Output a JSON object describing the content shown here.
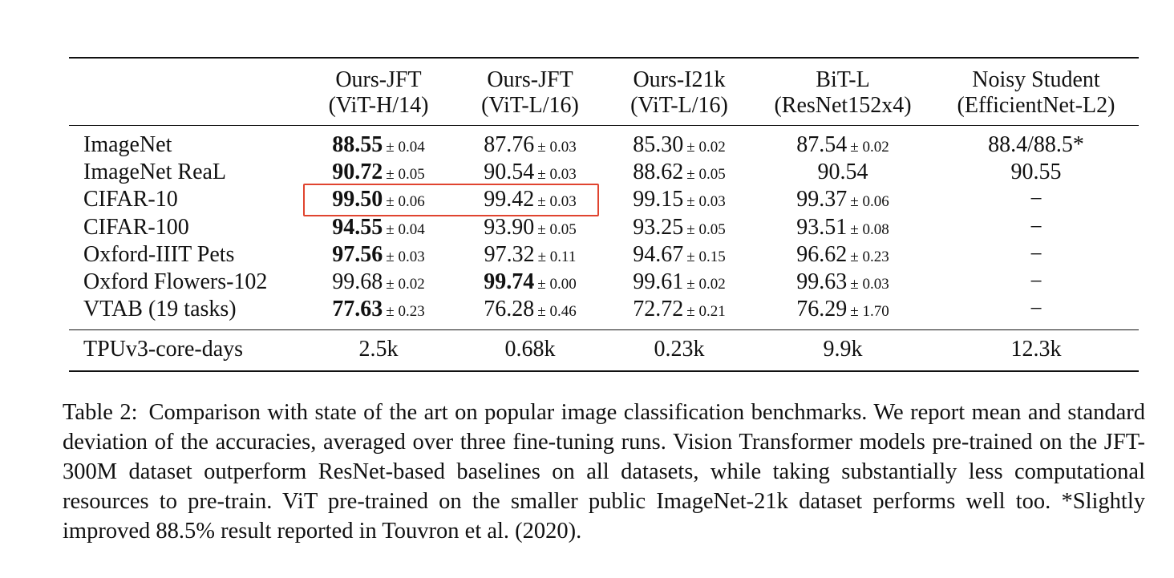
{
  "table": {
    "columns": [
      {
        "name": "Ours-JFT",
        "sub": "(ViT-H/14)"
      },
      {
        "name": "Ours-JFT",
        "sub": "(ViT-L/16)"
      },
      {
        "name": "Ours-I21k",
        "sub": "(ViT-L/16)"
      },
      {
        "name": "BiT-L",
        "sub": "(ResNet152x4)"
      },
      {
        "name": "Noisy Student",
        "sub": "(EfficientNet-L2)"
      }
    ],
    "rows": [
      {
        "label": "ImageNet",
        "cells": [
          {
            "v": "88.55",
            "pm": "± 0.04",
            "best": true
          },
          {
            "v": "87.76",
            "pm": "± 0.03",
            "best": false
          },
          {
            "v": "85.30",
            "pm": "± 0.02",
            "best": false
          },
          {
            "v": "87.54",
            "pm": "± 0.02",
            "best": false
          },
          {
            "v": "88.4/88.5*",
            "pm": "",
            "best": false
          }
        ]
      },
      {
        "label": "ImageNet ReaL",
        "cells": [
          {
            "v": "90.72",
            "pm": "± 0.05",
            "best": true
          },
          {
            "v": "90.54",
            "pm": "± 0.03",
            "best": false
          },
          {
            "v": "88.62",
            "pm": "± 0.05",
            "best": false
          },
          {
            "v": "90.54",
            "pm": "",
            "best": false
          },
          {
            "v": "90.55",
            "pm": "",
            "best": false
          }
        ]
      },
      {
        "label": "CIFAR-10",
        "cells": [
          {
            "v": "99.50",
            "pm": "± 0.06",
            "best": true
          },
          {
            "v": "99.42",
            "pm": "± 0.03",
            "best": false
          },
          {
            "v": "99.15",
            "pm": "± 0.03",
            "best": false
          },
          {
            "v": "99.37",
            "pm": "± 0.06",
            "best": false
          },
          {
            "v": "−",
            "pm": "",
            "best": false
          }
        ]
      },
      {
        "label": "CIFAR-100",
        "cells": [
          {
            "v": "94.55",
            "pm": "± 0.04",
            "best": true
          },
          {
            "v": "93.90",
            "pm": "± 0.05",
            "best": false
          },
          {
            "v": "93.25",
            "pm": "± 0.05",
            "best": false
          },
          {
            "v": "93.51",
            "pm": "± 0.08",
            "best": false
          },
          {
            "v": "−",
            "pm": "",
            "best": false
          }
        ]
      },
      {
        "label": "Oxford-IIIT Pets",
        "cells": [
          {
            "v": "97.56",
            "pm": "± 0.03",
            "best": true
          },
          {
            "v": "97.32",
            "pm": "± 0.11",
            "best": false
          },
          {
            "v": "94.67",
            "pm": "± 0.15",
            "best": false
          },
          {
            "v": "96.62",
            "pm": "± 0.23",
            "best": false
          },
          {
            "v": "−",
            "pm": "",
            "best": false
          }
        ]
      },
      {
        "label": "Oxford Flowers-102",
        "cells": [
          {
            "v": "99.68",
            "pm": "± 0.02",
            "best": false
          },
          {
            "v": "99.74",
            "pm": "± 0.00",
            "best": true
          },
          {
            "v": "99.61",
            "pm": "± 0.02",
            "best": false
          },
          {
            "v": "99.63",
            "pm": "± 0.03",
            "best": false
          },
          {
            "v": "−",
            "pm": "",
            "best": false
          }
        ]
      },
      {
        "label": "VTAB (19 tasks)",
        "cells": [
          {
            "v": "77.63",
            "pm": "± 0.23",
            "best": true
          },
          {
            "v": "76.28",
            "pm": "± 0.46",
            "best": false
          },
          {
            "v": "72.72",
            "pm": "± 0.21",
            "best": false
          },
          {
            "v": "76.29",
            "pm": "± 1.70",
            "best": false
          },
          {
            "v": "−",
            "pm": "",
            "best": false
          }
        ]
      }
    ],
    "cost_row": {
      "label": "TPUv3-core-days",
      "cells": [
        "2.5k",
        "0.68k",
        "0.23k",
        "9.9k",
        "12.3k"
      ]
    },
    "highlight_color": "#e0442f"
  },
  "caption": {
    "label": "Table 2:",
    "text": "Comparison with state of the art on popular image classification benchmarks. We report mean and standard deviation of the accuracies, averaged over three fine-tuning runs. Vision Transformer models pre-trained on the JFT-300M dataset outperform ResNet-based baselines on all datasets, while taking substantially less computational resources to pre-train. ViT pre-trained on the smaller public ImageNet-21k dataset performs well too. *Slightly improved 88.5% result reported in Touvron et al. (2020)."
  }
}
